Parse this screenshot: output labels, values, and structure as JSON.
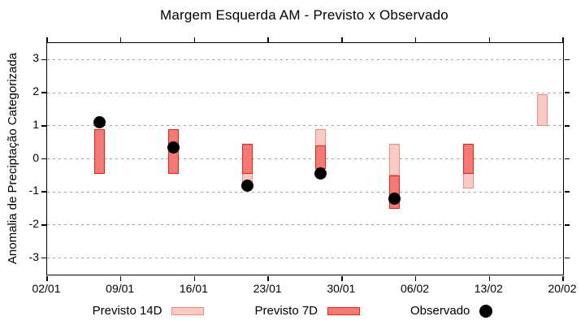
{
  "chart_data": {
    "type": "bar",
    "subtype": "weekly-range-bars-with-observed-points",
    "title": "Margem Esquerda AM - Previsto x Observado",
    "xlabel": "",
    "ylabel": "Anomalia de Preciptação Categorizada",
    "ylim": [
      -3.5,
      3.5
    ],
    "yticks": [
      3,
      2,
      1,
      0,
      -1,
      -2,
      -3
    ],
    "grid": true,
    "xlim_days": [
      0,
      49
    ],
    "xticks": [
      {
        "label": "02/01",
        "day": 0
      },
      {
        "label": "09/01",
        "day": 7
      },
      {
        "label": "16/01",
        "day": 14
      },
      {
        "label": "23/01",
        "day": 21
      },
      {
        "label": "30/01",
        "day": 28
      },
      {
        "label": "06/02",
        "day": 35
      },
      {
        "label": "13/02",
        "day": 42
      },
      {
        "label": "20/02",
        "day": 49
      }
    ],
    "series": [
      {
        "name": "Previsto 14D",
        "type": "range-bar"
      },
      {
        "name": "Previsto 7D",
        "type": "range-bar"
      },
      {
        "name": "Observado",
        "type": "point"
      }
    ],
    "bars": [
      {
        "date": "07/01",
        "day": 5,
        "previsto14": null,
        "previsto7": [
          -0.45,
          0.9
        ],
        "observado": 1.1
      },
      {
        "date": "14/01",
        "day": 12,
        "previsto14": null,
        "previsto7": [
          -0.45,
          0.9
        ],
        "observado": 0.35
      },
      {
        "date": "21/01",
        "day": 19,
        "previsto14": [
          -0.75,
          0.45
        ],
        "previsto7": [
          -0.45,
          0.45
        ],
        "observado": -0.8
      },
      {
        "date": "28/01",
        "day": 26,
        "previsto14": [
          -0.3,
          0.9
        ],
        "previsto7": [
          -0.3,
          0.4
        ],
        "observado": -0.45
      },
      {
        "date": "04/02",
        "day": 33,
        "previsto14": [
          -0.5,
          0.45
        ],
        "previsto7": [
          -1.5,
          -0.5
        ],
        "observado": -1.2
      },
      {
        "date": "11/02",
        "day": 40,
        "previsto14": [
          -0.9,
          0.45
        ],
        "previsto7": [
          -0.45,
          0.45
        ],
        "observado": null
      },
      {
        "date": "18/02",
        "day": 47,
        "previsto14": [
          1.0,
          1.95
        ],
        "previsto7": null,
        "observado": null
      }
    ],
    "legend_position": "bottom"
  },
  "legend": {
    "previsto14_label": "Previsto 14D",
    "previsto7_label": "Previsto 7D",
    "observado_label": "Observado"
  },
  "colors": {
    "previsto14_fill": "#fbcac5",
    "previsto14_border": "#f28b80",
    "previsto7_fill": "#f57a74",
    "previsto7_border": "#e2241e",
    "observado": "#000000",
    "grid": "#a0a0a0",
    "frame": "#000000"
  }
}
